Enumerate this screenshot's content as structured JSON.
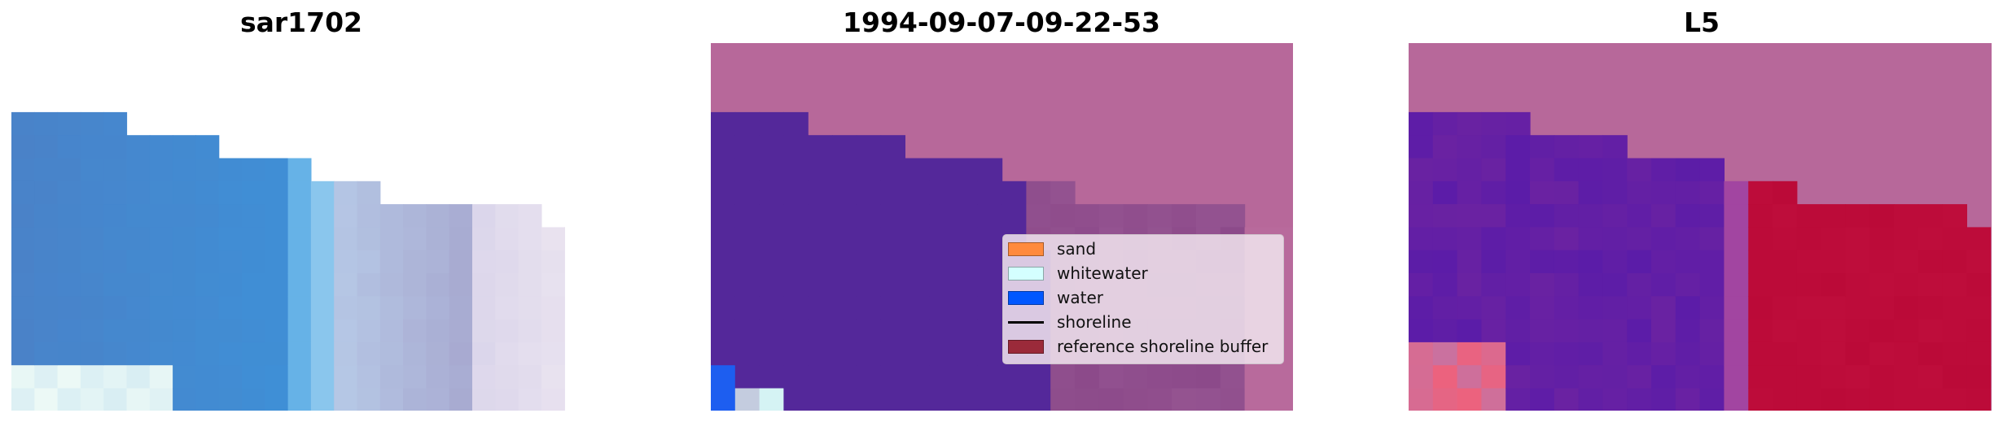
{
  "panels": [
    {
      "title": "sar1702",
      "content": "satellite image"
    },
    {
      "title": "1994-09-07-09-22-53",
      "content": "classified image"
    },
    {
      "title": "L5",
      "content": "water index image"
    }
  ],
  "legend": {
    "entries": [
      {
        "label": "sand",
        "color": "#ff8a3d",
        "kind": "patch"
      },
      {
        "label": "whitewater",
        "color": "#d4ffff",
        "kind": "patch"
      },
      {
        "label": "water",
        "color": "#0057ff",
        "kind": "patch"
      },
      {
        "label": "shoreline",
        "color": "#000000",
        "kind": "line"
      },
      {
        "label": "reference shoreline buffer",
        "color": "#9b2a3a",
        "kind": "patch"
      }
    ]
  },
  "colors": {
    "nodata": "#b7689a",
    "classified_water": "#54289a",
    "classified_land": "#8c4a8a",
    "index_water": "#6a1e9e",
    "index_land": "#bb0a38"
  }
}
